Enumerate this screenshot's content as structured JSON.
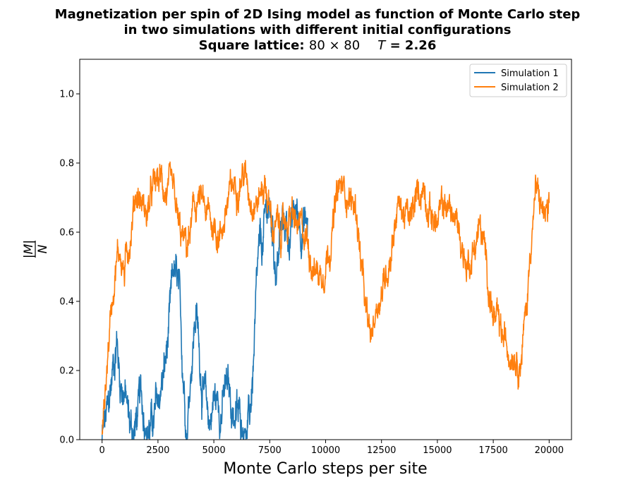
{
  "chart_data": {
    "type": "line",
    "title": [
      "Magnetization per spin of 2D Ising model as function of Monte Carlo step",
      "in two simulations with different initial configurations"
    ],
    "subtitle": {
      "prefix": "Square lattice:",
      "lattice": "80 × 80",
      "temp_symbol": "T",
      "temp_value": "= 2.26"
    },
    "xlabel": "Monte Carlo steps per site",
    "ylabel": {
      "numerator": "|M|",
      "denominator": "N"
    },
    "xlim": [
      -1000,
      21000
    ],
    "ylim": [
      0,
      1.1
    ],
    "xticks": [
      0,
      2500,
      5000,
      7500,
      10000,
      12500,
      15000,
      17500,
      20000
    ],
    "xtick_labels": [
      "0",
      "2500",
      "5000",
      "7500",
      "10000",
      "12500",
      "15000",
      "17500",
      "20000"
    ],
    "yticks": [
      0.0,
      0.2,
      0.4,
      0.6,
      0.8,
      1.0
    ],
    "ytick_labels": [
      "0.0",
      "0.2",
      "0.4",
      "0.6",
      "0.8",
      "1.0"
    ],
    "legend_position": "top-right",
    "grid": false,
    "series": [
      {
        "name": "Simulation 1",
        "color": "#1f77b4",
        "x_range": [
          0,
          9200
        ],
        "noise": 0.06,
        "keypoints": [
          [
            0,
            0.0
          ],
          [
            300,
            0.08
          ],
          [
            500,
            0.22
          ],
          [
            650,
            0.3
          ],
          [
            800,
            0.18
          ],
          [
            1000,
            0.15
          ],
          [
            1200,
            0.05
          ],
          [
            1400,
            0.02
          ],
          [
            1700,
            0.1
          ],
          [
            2000,
            0.05
          ],
          [
            2300,
            0.04
          ],
          [
            2500,
            0.1
          ],
          [
            2800,
            0.2
          ],
          [
            3000,
            0.3
          ],
          [
            3200,
            0.48
          ],
          [
            3400,
            0.42
          ],
          [
            3600,
            0.22
          ],
          [
            3800,
            0.05
          ],
          [
            4000,
            0.25
          ],
          [
            4200,
            0.38
          ],
          [
            4400,
            0.22
          ],
          [
            4600,
            0.1
          ],
          [
            4800,
            0.05
          ],
          [
            5000,
            0.12
          ],
          [
            5300,
            0.1
          ],
          [
            5600,
            0.14
          ],
          [
            5900,
            0.08
          ],
          [
            6200,
            0.05
          ],
          [
            6400,
            0.02
          ],
          [
            6600,
            0.05
          ],
          [
            6800,
            0.25
          ],
          [
            7000,
            0.5
          ],
          [
            7200,
            0.55
          ],
          [
            7400,
            0.68
          ],
          [
            7600,
            0.62
          ],
          [
            7800,
            0.5
          ],
          [
            8000,
            0.6
          ],
          [
            8200,
            0.62
          ],
          [
            8400,
            0.6
          ],
          [
            8700,
            0.65
          ],
          [
            9000,
            0.63
          ],
          [
            9200,
            0.62
          ]
        ]
      },
      {
        "name": "Simulation 2",
        "color": "#ff7f0e",
        "x_range": [
          0,
          20000
        ],
        "noise": 0.045,
        "keypoints": [
          [
            0,
            0.0
          ],
          [
            200,
            0.2
          ],
          [
            400,
            0.38
          ],
          [
            600,
            0.52
          ],
          [
            800,
            0.55
          ],
          [
            1000,
            0.48
          ],
          [
            1300,
            0.62
          ],
          [
            1500,
            0.72
          ],
          [
            1700,
            0.7
          ],
          [
            2000,
            0.65
          ],
          [
            2300,
            0.72
          ],
          [
            2600,
            0.75
          ],
          [
            2900,
            0.72
          ],
          [
            3200,
            0.68
          ],
          [
            3500,
            0.58
          ],
          [
            3800,
            0.55
          ],
          [
            4000,
            0.62
          ],
          [
            4300,
            0.7
          ],
          [
            4600,
            0.65
          ],
          [
            5000,
            0.62
          ],
          [
            5300,
            0.6
          ],
          [
            5600,
            0.68
          ],
          [
            6000,
            0.75
          ],
          [
            6300,
            0.78
          ],
          [
            6600,
            0.72
          ],
          [
            7000,
            0.7
          ],
          [
            7300,
            0.75
          ],
          [
            7600,
            0.62
          ],
          [
            8000,
            0.6
          ],
          [
            8400,
            0.65
          ],
          [
            8800,
            0.6
          ],
          [
            9200,
            0.58
          ],
          [
            9500,
            0.5
          ],
          [
            9800,
            0.48
          ],
          [
            10200,
            0.58
          ],
          [
            10600,
            0.72
          ],
          [
            11000,
            0.72
          ],
          [
            11400,
            0.65
          ],
          [
            11800,
            0.35
          ],
          [
            12000,
            0.28
          ],
          [
            12300,
            0.4
          ],
          [
            12600,
            0.45
          ],
          [
            12900,
            0.55
          ],
          [
            13200,
            0.68
          ],
          [
            13500,
            0.66
          ],
          [
            13800,
            0.62
          ],
          [
            14100,
            0.7
          ],
          [
            14400,
            0.74
          ],
          [
            14700,
            0.66
          ],
          [
            15000,
            0.62
          ],
          [
            15300,
            0.68
          ],
          [
            15600,
            0.66
          ],
          [
            16000,
            0.6
          ],
          [
            16300,
            0.5
          ],
          [
            16600,
            0.55
          ],
          [
            16900,
            0.62
          ],
          [
            17200,
            0.5
          ],
          [
            17500,
            0.36
          ],
          [
            17800,
            0.3
          ],
          [
            18100,
            0.26
          ],
          [
            18400,
            0.28
          ],
          [
            18700,
            0.24
          ],
          [
            19000,
            0.38
          ],
          [
            19200,
            0.6
          ],
          [
            19400,
            0.72
          ],
          [
            19700,
            0.66
          ],
          [
            20000,
            0.62
          ]
        ]
      }
    ]
  }
}
